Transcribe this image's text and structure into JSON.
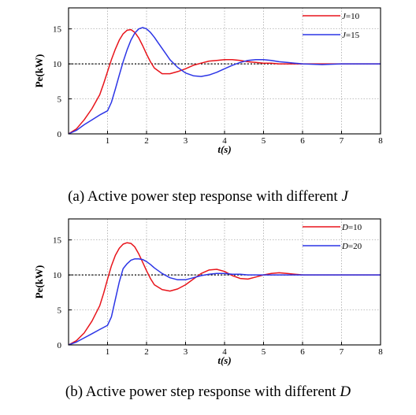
{
  "captions": {
    "a": {
      "text": "(a) Active power step response with different ",
      "var": "J"
    },
    "b": {
      "text": "(b) Active power step response with different ",
      "var": "D"
    }
  },
  "chart_data": [
    {
      "type": "line",
      "xlabel": "t(s)",
      "ylabel": "Pe(kW)",
      "xlim": [
        0,
        8
      ],
      "ylim": [
        0,
        18
      ],
      "xticks": [
        1,
        2,
        3,
        4,
        5,
        6,
        7,
        8
      ],
      "yticks": [
        0,
        5,
        10,
        15
      ],
      "grid": true,
      "legend": "top-right",
      "reference_line": 10,
      "series": [
        {
          "name": "J=10",
          "color": "#e8141b",
          "x": [
            0,
            0.2,
            0.4,
            0.6,
            0.8,
            0.9,
            1.0,
            1.1,
            1.2,
            1.3,
            1.4,
            1.5,
            1.6,
            1.7,
            1.8,
            1.9,
            2.0,
            2.1,
            2.2,
            2.4,
            2.6,
            2.8,
            3.0,
            3.2,
            3.4,
            3.6,
            3.8,
            4.0,
            4.2,
            4.4,
            4.6,
            4.8,
            5.0,
            5.2,
            5.4,
            5.6,
            5.8,
            6.0,
            6.5,
            7.0,
            7.5,
            8.0
          ],
          "y": [
            0,
            0.7,
            2.0,
            3.6,
            5.6,
            7.2,
            8.9,
            10.6,
            12.1,
            13.4,
            14.3,
            14.8,
            14.9,
            14.5,
            13.7,
            12.6,
            11.4,
            10.3,
            9.4,
            8.6,
            8.6,
            8.9,
            9.3,
            9.8,
            10.1,
            10.4,
            10.5,
            10.6,
            10.6,
            10.5,
            10.3,
            10.2,
            10.1,
            10.1,
            10.0,
            10.0,
            10.0,
            10.0,
            10.0,
            10.0,
            10.0,
            10.0
          ]
        },
        {
          "name": "J=15",
          "color": "#2c35e6",
          "x": [
            0,
            0.2,
            0.4,
            0.6,
            0.8,
            1.0,
            1.1,
            1.2,
            1.3,
            1.4,
            1.5,
            1.6,
            1.7,
            1.8,
            1.9,
            2.0,
            2.1,
            2.2,
            2.3,
            2.4,
            2.5,
            2.6,
            2.8,
            3.0,
            3.2,
            3.4,
            3.6,
            3.8,
            4.0,
            4.2,
            4.4,
            4.6,
            4.8,
            5.0,
            5.2,
            5.4,
            5.6,
            5.8,
            6.0,
            6.5,
            7.0,
            7.5,
            8.0
          ],
          "y": [
            0,
            0.5,
            1.3,
            2.0,
            2.7,
            3.3,
            4.5,
            6.4,
            8.4,
            10.3,
            12.0,
            13.4,
            14.4,
            15.0,
            15.2,
            15.0,
            14.5,
            13.8,
            13.0,
            12.2,
            11.4,
            10.6,
            9.5,
            8.7,
            8.3,
            8.2,
            8.4,
            8.8,
            9.3,
            9.8,
            10.2,
            10.5,
            10.6,
            10.6,
            10.5,
            10.3,
            10.2,
            10.1,
            10.0,
            9.9,
            10.0,
            10.0,
            10.0
          ]
        }
      ]
    },
    {
      "type": "line",
      "xlabel": "t(s)",
      "ylabel": "Pe(kW)",
      "xlim": [
        0,
        8
      ],
      "ylim": [
        0,
        18
      ],
      "xticks": [
        1,
        2,
        3,
        4,
        5,
        6,
        7,
        8
      ],
      "yticks": [
        0,
        5,
        10,
        15
      ],
      "grid": true,
      "legend": "top-right",
      "reference_line": 10,
      "series": [
        {
          "name": "D=10",
          "color": "#e8141b",
          "x": [
            0,
            0.2,
            0.4,
            0.6,
            0.8,
            0.9,
            1.0,
            1.1,
            1.2,
            1.3,
            1.4,
            1.5,
            1.6,
            1.7,
            1.8,
            1.9,
            2.0,
            2.1,
            2.2,
            2.4,
            2.6,
            2.8,
            3.0,
            3.2,
            3.4,
            3.6,
            3.8,
            4.0,
            4.2,
            4.4,
            4.6,
            4.8,
            5.0,
            5.2,
            5.4,
            5.6,
            5.8,
            6.0,
            6.5,
            7.0,
            7.5,
            8.0
          ],
          "y": [
            0,
            0.6,
            1.7,
            3.4,
            5.6,
            7.4,
            9.4,
            11.3,
            12.8,
            13.8,
            14.4,
            14.6,
            14.5,
            14.0,
            13.0,
            11.8,
            10.6,
            9.5,
            8.6,
            7.9,
            7.7,
            8.0,
            8.6,
            9.4,
            10.2,
            10.7,
            10.8,
            10.5,
            9.9,
            9.5,
            9.4,
            9.7,
            10.0,
            10.2,
            10.3,
            10.2,
            10.1,
            10.0,
            10.0,
            10.0,
            10.0,
            10.0
          ]
        },
        {
          "name": "D=20",
          "color": "#2c35e6",
          "x": [
            0,
            0.2,
            0.4,
            0.6,
            0.8,
            1.0,
            1.1,
            1.2,
            1.3,
            1.4,
            1.5,
            1.6,
            1.7,
            1.8,
            1.9,
            2.0,
            2.1,
            2.2,
            2.4,
            2.6,
            2.8,
            3.0,
            3.2,
            3.4,
            3.6,
            3.8,
            4.0,
            4.2,
            4.4,
            4.6,
            4.8,
            5.0,
            5.5,
            6.0,
            6.5,
            7.0,
            7.5,
            8.0
          ],
          "y": [
            0,
            0.4,
            1.0,
            1.6,
            2.2,
            2.8,
            4.0,
            6.5,
            9.0,
            10.9,
            11.6,
            12.1,
            12.3,
            12.3,
            12.2,
            11.9,
            11.5,
            11.0,
            10.2,
            9.6,
            9.3,
            9.3,
            9.6,
            9.9,
            10.1,
            10.2,
            10.2,
            10.1,
            10.1,
            10.0,
            10.0,
            10.0,
            10.0,
            10.0,
            10.0,
            10.0,
            10.0,
            10.0
          ]
        }
      ]
    }
  ]
}
